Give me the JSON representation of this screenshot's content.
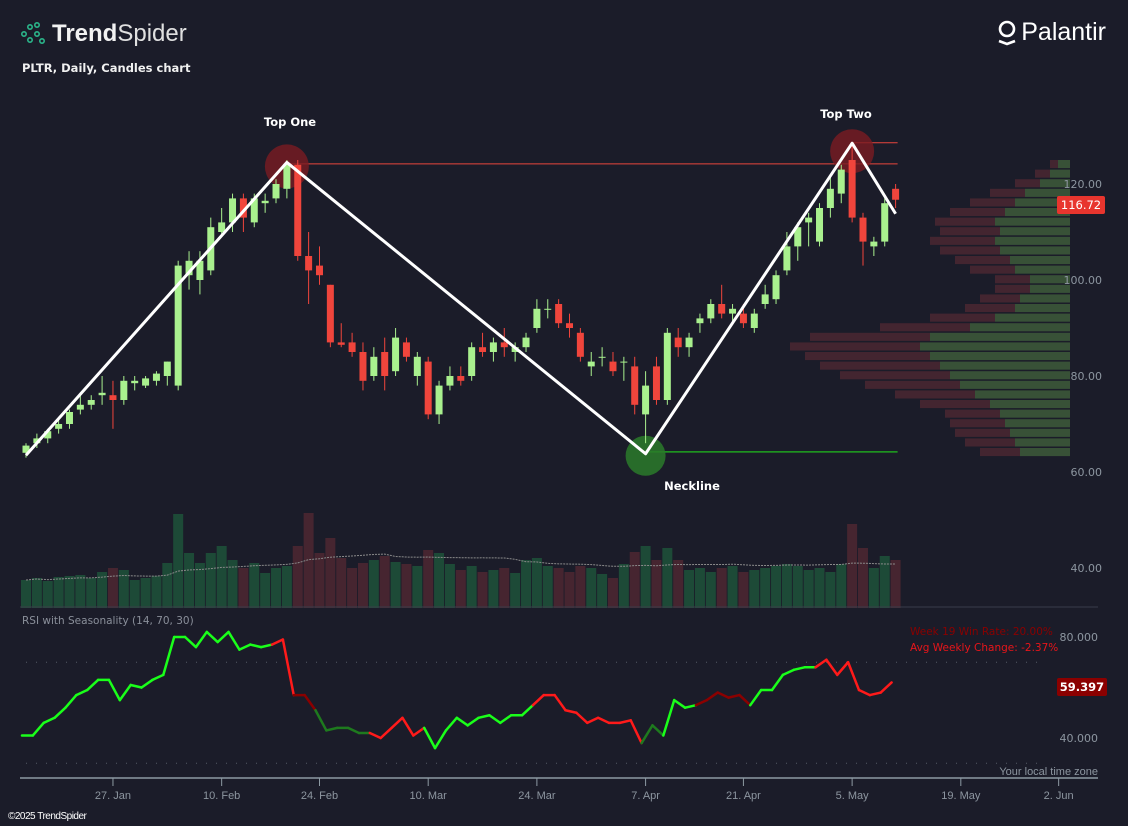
{
  "header": {
    "brand_bold": "Trend",
    "brand_light": "Spider",
    "subtitle": "PLTR, Daily, Candles chart",
    "company_logo": "Palantir",
    "copyright": "©2025 TrendSpider",
    "timezone_note": "Your local time zone"
  },
  "colors": {
    "background": "#1b1c29",
    "candle_up": "#a9f08e",
    "candle_down": "#f0453c",
    "volume_up": "#1d4a37",
    "volume_down": "#462530",
    "pattern_line": "#ffffff",
    "resistance": "#e8453c",
    "neckline": "#1fa31f",
    "rsi_green": "#1aff1a",
    "rsi_dark_green": "#1e7a1e",
    "rsi_red": "#ff1a1a",
    "rsi_dark_red": "#8b0000",
    "price_badge": "#e8352e",
    "rsi_badge": "#8b0000"
  },
  "annotations": {
    "top_one": "Top One",
    "top_two": "Top Two",
    "neckline": "Neckline"
  },
  "rsi_panel": {
    "title": "RSI with Seasonality (14, 70, 30)",
    "win_rate": "Week 19 Win Rate: 20.00%",
    "avg_change": "Avg Weekly Change: -2.37%",
    "current": "59.397",
    "overbought": 70,
    "oversold": 30,
    "ticks": [
      "80.000",
      "40.000"
    ]
  },
  "price_axis": {
    "ticks": [
      "120.00",
      "100.00",
      "80.00",
      "60.00"
    ],
    "current": "116.72"
  },
  "volume_axis": {
    "ticks": [
      "40.00"
    ]
  },
  "chart_data": {
    "type": "candlestick",
    "symbol": "PLTR",
    "interval": "Daily",
    "ylim": [
      60,
      128
    ],
    "x_ticks": [
      {
        "label": "27. Jan",
        "date": "2025-01-27"
      },
      {
        "label": "10. Feb",
        "date": "2025-02-10"
      },
      {
        "label": "24. Feb",
        "date": "2025-02-24"
      },
      {
        "label": "10. Mar",
        "date": "2025-03-10"
      },
      {
        "label": "24. Mar",
        "date": "2025-03-24"
      },
      {
        "label": "7. Apr",
        "date": "2025-04-07"
      },
      {
        "label": "21. Apr",
        "date": "2025-04-21"
      },
      {
        "label": "5. May",
        "date": "2025-05-05"
      },
      {
        "label": "19. May",
        "date": "2025-05-19"
      },
      {
        "label": "2. Jun",
        "date": "2025-06-02"
      }
    ],
    "columns": [
      "date",
      "open",
      "high",
      "low",
      "close",
      "volume",
      "rsi",
      "rsi_color"
    ],
    "candles": [
      [
        "2025-01-14",
        64,
        66,
        63,
        65.5,
        28,
        41,
        "g"
      ],
      [
        "2025-01-15",
        66,
        68,
        65,
        67,
        30,
        41,
        "g"
      ],
      [
        "2025-01-16",
        67,
        69,
        66,
        68.5,
        27,
        46,
        "g"
      ],
      [
        "2025-01-17",
        69,
        71,
        68,
        70,
        31,
        48,
        "g"
      ],
      [
        "2025-01-21",
        70,
        73,
        69,
        72.5,
        32,
        52,
        "g"
      ],
      [
        "2025-01-22",
        73,
        76,
        72,
        74,
        33,
        57,
        "g"
      ],
      [
        "2025-01-23",
        74,
        76,
        73,
        75,
        30,
        59,
        "g"
      ],
      [
        "2025-01-24",
        76,
        80,
        74,
        76.5,
        36,
        63,
        "g"
      ],
      [
        "2025-01-27",
        76,
        79,
        69,
        75,
        40,
        63,
        "g"
      ],
      [
        "2025-01-28",
        75,
        80,
        74,
        79,
        38,
        55,
        "g"
      ],
      [
        "2025-01-29",
        78.5,
        80,
        77,
        79,
        28,
        61,
        "g"
      ],
      [
        "2025-01-30",
        78,
        80,
        77.5,
        79.5,
        30,
        60,
        "g"
      ],
      [
        "2025-01-31",
        79,
        81,
        78,
        80.5,
        32,
        63,
        "g"
      ],
      [
        "2025-02-03",
        80,
        83,
        78,
        83,
        45,
        65,
        "g"
      ],
      [
        "2025-02-04",
        78,
        104,
        77,
        103,
        94,
        80,
        "g"
      ],
      [
        "2025-02-05",
        101,
        106,
        98,
        104,
        55,
        80,
        "g"
      ],
      [
        "2025-02-06",
        100,
        106,
        97,
        104,
        45,
        76,
        "g"
      ],
      [
        "2025-02-07",
        102,
        113,
        101,
        111,
        55,
        82,
        "g"
      ],
      [
        "2025-02-10",
        110,
        115,
        109,
        112,
        62,
        78,
        "g"
      ],
      [
        "2025-02-11",
        112,
        118,
        110,
        117,
        48,
        82,
        "g"
      ],
      [
        "2025-02-12",
        117,
        118,
        110,
        113,
        40,
        75,
        "g"
      ],
      [
        "2025-02-13",
        112,
        118,
        111,
        117,
        45,
        77,
        "g"
      ],
      [
        "2025-02-14",
        116,
        118,
        114,
        116.5,
        35,
        76,
        "g"
      ],
      [
        "2025-02-18",
        117,
        121,
        116,
        120,
        40,
        77,
        "g"
      ],
      [
        "2025-02-19",
        119,
        125,
        117,
        124.2,
        42,
        79,
        "r"
      ],
      [
        "2025-02-20",
        124,
        125,
        104,
        105,
        62,
        57,
        "r"
      ],
      [
        "2025-02-21",
        105,
        110,
        95,
        102,
        95,
        57,
        "dr"
      ],
      [
        "2025-02-24",
        103,
        107,
        99,
        101,
        55,
        51,
        "dr"
      ],
      [
        "2025-02-25",
        99,
        99,
        86,
        87,
        70,
        43,
        "dg"
      ],
      [
        "2025-02-26",
        87,
        91,
        86,
        86.5,
        50,
        44,
        "dg"
      ],
      [
        "2025-02-27",
        87,
        89,
        84,
        85,
        40,
        44,
        "dg"
      ],
      [
        "2025-02-28",
        85,
        87,
        77,
        79,
        45,
        42,
        "dg"
      ],
      [
        "2025-03-03",
        80,
        86,
        79,
        84,
        48,
        42,
        "dg"
      ],
      [
        "2025-03-04",
        85,
        88,
        77,
        80,
        52,
        40,
        "r"
      ],
      [
        "2025-03-05",
        81,
        90,
        80,
        88,
        46,
        44,
        "r"
      ],
      [
        "2025-03-06",
        87,
        88,
        83,
        84,
        44,
        48,
        "r"
      ],
      [
        "2025-03-07",
        80,
        85,
        78,
        84,
        42,
        41,
        "r"
      ],
      [
        "2025-03-10",
        83,
        84,
        71,
        72,
        58,
        44,
        "r"
      ],
      [
        "2025-03-11",
        72,
        79,
        70,
        78,
        55,
        36,
        "g"
      ],
      [
        "2025-03-12",
        78,
        82,
        77,
        80,
        44,
        43,
        "g"
      ],
      [
        "2025-03-13",
        80,
        82,
        78,
        79,
        38,
        48,
        "g"
      ],
      [
        "2025-03-14",
        80,
        87,
        79,
        86,
        42,
        45,
        "g"
      ],
      [
        "2025-03-17",
        86,
        89,
        84,
        85,
        36,
        48,
        "g"
      ],
      [
        "2025-03-18",
        85,
        88,
        83,
        87,
        38,
        49,
        "g"
      ],
      [
        "2025-03-19",
        87,
        90,
        84,
        86,
        40,
        46,
        "g"
      ],
      [
        "2025-03-20",
        85,
        87,
        83,
        86,
        35,
        49,
        "g"
      ],
      [
        "2025-03-21",
        86,
        89,
        85,
        88,
        48,
        49,
        "g"
      ],
      [
        "2025-03-24",
        90,
        96,
        89,
        94,
        50,
        53,
        "g"
      ],
      [
        "2025-03-25",
        94,
        96,
        92,
        94,
        42,
        57,
        "r"
      ],
      [
        "2025-03-26",
        95,
        96,
        90,
        91,
        40,
        57,
        "r"
      ],
      [
        "2025-03-27",
        91,
        93,
        88,
        90,
        36,
        51,
        "r"
      ],
      [
        "2025-03-28",
        89,
        90,
        83,
        84,
        42,
        50,
        "r"
      ],
      [
        "2025-03-31",
        82,
        85,
        80,
        83,
        40,
        46,
        "r"
      ],
      [
        "2025-04-01",
        84,
        86,
        82,
        84,
        34,
        48,
        "r"
      ],
      [
        "2025-04-02",
        83,
        85,
        80,
        81,
        30,
        46,
        "r"
      ],
      [
        "2025-04-03",
        83,
        84,
        79,
        83,
        44,
        46,
        "r"
      ],
      [
        "2025-04-04",
        82,
        84,
        72,
        74,
        56,
        47,
        "r"
      ],
      [
        "2025-04-07",
        72,
        81,
        66,
        78,
        62,
        38,
        "r"
      ],
      [
        "2025-04-08",
        82,
        84,
        74,
        75,
        48,
        45,
        "dg"
      ],
      [
        "2025-04-09",
        75,
        90,
        74,
        89,
        60,
        41,
        "dg"
      ],
      [
        "2025-04-10",
        88,
        90,
        84,
        86,
        48,
        55,
        "g"
      ],
      [
        "2025-04-11",
        86,
        89,
        84,
        88,
        38,
        52,
        "g"
      ],
      [
        "2025-04-14",
        91,
        93,
        89,
        92,
        40,
        53,
        "g"
      ],
      [
        "2025-04-15",
        92,
        96,
        91,
        95,
        36,
        55,
        "dr"
      ],
      [
        "2025-04-16",
        95,
        99,
        92,
        93,
        40,
        58,
        "dr"
      ],
      [
        "2025-04-17",
        93,
        95,
        91,
        94,
        42,
        56,
        "dr"
      ],
      [
        "2025-04-21",
        93,
        95,
        90,
        91,
        36,
        57,
        "dr"
      ],
      [
        "2025-04-22",
        90,
        94,
        89,
        93,
        38,
        53,
        "dr"
      ],
      [
        "2025-04-23",
        95,
        99,
        94,
        97,
        40,
        59,
        "g"
      ],
      [
        "2025-04-24",
        96,
        102,
        95,
        101,
        42,
        59,
        "g"
      ],
      [
        "2025-04-25",
        102,
        110,
        101,
        107,
        44,
        65,
        "g"
      ],
      [
        "2025-04-28",
        107,
        112,
        104,
        111,
        42,
        67,
        "g"
      ],
      [
        "2025-04-29",
        112,
        114,
        107,
        113,
        38,
        68,
        "g"
      ],
      [
        "2025-04-30",
        108,
        116,
        107,
        115,
        40,
        68,
        "g"
      ],
      [
        "2025-05-01",
        115,
        122,
        113,
        119,
        36,
        71,
        "r"
      ],
      [
        "2025-05-02",
        118,
        124,
        116,
        123,
        44,
        65,
        "r"
      ],
      [
        "2025-05-05",
        125,
        128.5,
        112,
        113,
        84,
        70,
        "r"
      ],
      [
        "2025-05-06",
        113,
        114,
        103,
        108,
        60,
        59,
        "r"
      ],
      [
        "2025-05-07",
        107,
        109,
        105,
        108,
        40,
        57,
        "r"
      ],
      [
        "2025-05-08",
        108,
        117,
        107,
        116,
        52,
        58,
        "r"
      ],
      [
        "2025-05-09",
        119,
        120,
        115,
        116.72,
        48,
        62,
        "r"
      ]
    ],
    "rsi_final": 59.397,
    "pattern": {
      "type": "double top",
      "points": [
        [
          "2025-01-14",
          63.5
        ],
        [
          "2025-02-19",
          124.5
        ],
        [
          "2025-04-07",
          63.8
        ],
        [
          "2025-05-05",
          128.5
        ],
        [
          "2025-05-09",
          113.8
        ]
      ],
      "resistance": [
        {
          "price": 124.2,
          "from": "2025-02-19"
        },
        {
          "price": 128.6,
          "from": "2025-05-05"
        }
      ],
      "neckline": {
        "price": 64.2,
        "from": "2025-04-07"
      }
    },
    "volume_profile": {
      "columns": [
        "price",
        "up",
        "down"
      ],
      "bins": [
        [
          64,
          50,
          40
        ],
        [
          66,
          55,
          50
        ],
        [
          68,
          60,
          55
        ],
        [
          70,
          65,
          55
        ],
        [
          72,
          70,
          55
        ],
        [
          74,
          80,
          70
        ],
        [
          76,
          95,
          80
        ],
        [
          78,
          110,
          95
        ],
        [
          80,
          120,
          110
        ],
        [
          82,
          130,
          120
        ],
        [
          84,
          140,
          125
        ],
        [
          86,
          150,
          130
        ],
        [
          88,
          140,
          120
        ],
        [
          90,
          100,
          90
        ],
        [
          92,
          75,
          65
        ],
        [
          94,
          55,
          50
        ],
        [
          96,
          50,
          40
        ],
        [
          98,
          40,
          35
        ],
        [
          100,
          40,
          35
        ],
        [
          102,
          55,
          45
        ],
        [
          104,
          60,
          55
        ],
        [
          106,
          70,
          60
        ],
        [
          108,
          75,
          65
        ],
        [
          110,
          70,
          60
        ],
        [
          112,
          75,
          60
        ],
        [
          114,
          65,
          55
        ],
        [
          116,
          55,
          45
        ],
        [
          118,
          45,
          35
        ],
        [
          120,
          30,
          25
        ],
        [
          122,
          20,
          15
        ],
        [
          124,
          12,
          8
        ]
      ]
    }
  }
}
